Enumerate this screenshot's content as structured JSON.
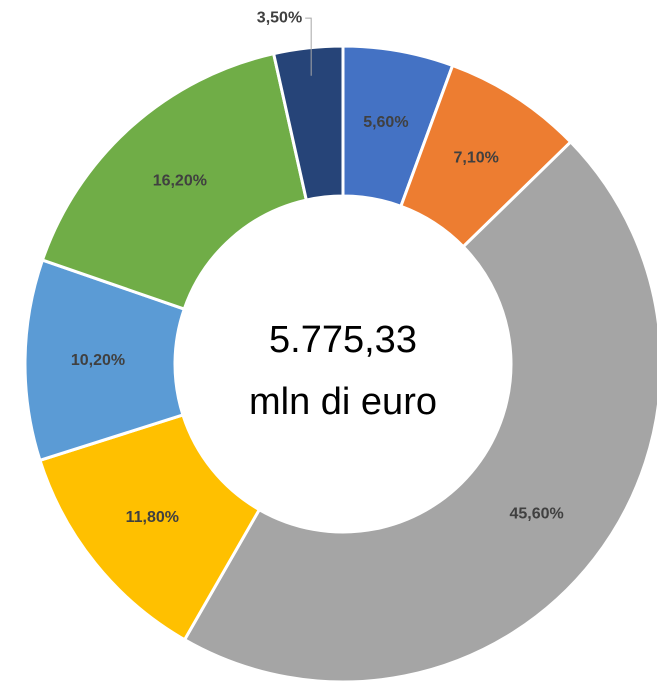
{
  "chart_data": {
    "type": "donut",
    "annotations": [
      "5.775,33",
      "mln di euro"
    ],
    "values": [
      5.6,
      7.1,
      45.6,
      11.8,
      10.2,
      16.2,
      3.5
    ],
    "value_labels": [
      "5,60%",
      "7,10%",
      "45,60%",
      "11,80%",
      "10,20%",
      "16,20%",
      "3,50%"
    ],
    "colors": [
      "#4472c4",
      "#ed7d31",
      "#a5a5a5",
      "#ffc000",
      "#5b9bd5",
      "#70ad47",
      "#264478"
    ]
  }
}
